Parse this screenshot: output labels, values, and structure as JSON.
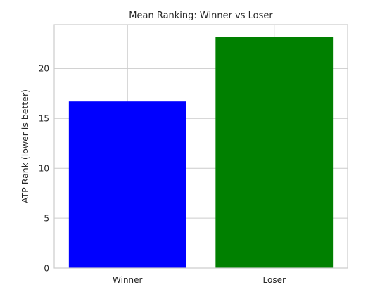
{
  "chart_data": {
    "type": "bar",
    "title": "Mean Ranking: Winner vs Loser",
    "xlabel": "",
    "ylabel": "ATP Rank (lower is better)",
    "categories": [
      "Winner",
      "Loser"
    ],
    "values": [
      16.7,
      23.2
    ],
    "colors": [
      "#0000ff",
      "#008000"
    ],
    "ylim": [
      0,
      24.4
    ],
    "yticks": [
      0,
      5,
      10,
      15,
      20
    ],
    "grid": true,
    "style": {
      "grid_color": "#cccccc",
      "frame_color": "#cccccc",
      "background": "#ffffff"
    }
  }
}
